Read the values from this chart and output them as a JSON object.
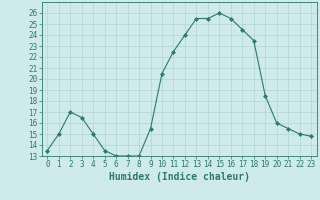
{
  "x": [
    0,
    1,
    2,
    3,
    4,
    5,
    6,
    7,
    8,
    9,
    10,
    11,
    12,
    13,
    14,
    15,
    16,
    17,
    18,
    19,
    20,
    21,
    22,
    23
  ],
  "y": [
    13.5,
    15.0,
    17.0,
    16.5,
    15.0,
    13.5,
    13.0,
    13.0,
    13.0,
    15.5,
    20.5,
    22.5,
    24.0,
    25.5,
    25.5,
    26.0,
    25.5,
    24.5,
    23.5,
    18.5,
    16.0,
    15.5,
    15.0,
    14.8
  ],
  "line_color": "#2d7a6a",
  "marker": "D",
  "marker_size": 2.0,
  "bg_color": "#ceeaea",
  "grid_color": "#b8d8d8",
  "xlabel": "Humidex (Indice chaleur)",
  "xlim": [
    -0.5,
    23.5
  ],
  "ylim": [
    13,
    27
  ],
  "yticks": [
    13,
    14,
    15,
    16,
    17,
    18,
    19,
    20,
    21,
    22,
    23,
    24,
    25,
    26
  ],
  "xticks": [
    0,
    1,
    2,
    3,
    4,
    5,
    6,
    7,
    8,
    9,
    10,
    11,
    12,
    13,
    14,
    15,
    16,
    17,
    18,
    19,
    20,
    21,
    22,
    23
  ],
  "tick_label_size": 5.5,
  "xlabel_size": 7.0
}
